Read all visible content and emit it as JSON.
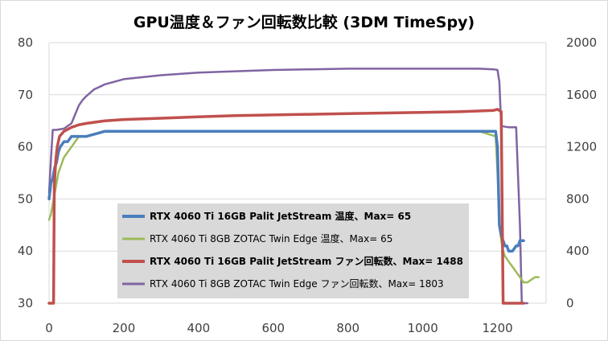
{
  "chart_data": {
    "type": "line",
    "title": "GPU温度＆ファン回転数比較 (3DM TimeSpy)",
    "xlabel": "",
    "ylabel": "",
    "y2label": "",
    "xlim": [
      0,
      1330
    ],
    "xticks": [
      0,
      200,
      400,
      600,
      800,
      1000,
      1200
    ],
    "ylim": [
      30,
      80
    ],
    "yticks": [
      30,
      40,
      50,
      60,
      70,
      80
    ],
    "y2lim": [
      0,
      2000
    ],
    "y2ticks": [
      0,
      400,
      800,
      1200,
      1600,
      2000
    ],
    "grid": "horizontal",
    "legend_position": "center-left",
    "series": [
      {
        "name": "RTX 4060 Ti 16GB Palit JetStream 温度、Max= 65",
        "axis": "left",
        "color": "#4a7ebb",
        "bold": true,
        "x": [
          0,
          5,
          10,
          15,
          20,
          25,
          30,
          40,
          50,
          60,
          80,
          100,
          150,
          200,
          300,
          400,
          500,
          600,
          700,
          800,
          900,
          1000,
          1100,
          1150,
          1195,
          1200,
          1205,
          1210,
          1215,
          1220,
          1225,
          1230,
          1240,
          1250,
          1255,
          1260,
          1270
        ],
        "y": [
          50,
          53,
          54,
          56,
          57,
          59,
          60,
          61,
          61,
          62,
          62,
          62,
          63,
          63,
          63,
          63,
          63,
          63,
          63,
          63,
          63,
          63,
          63,
          63,
          63,
          60,
          45,
          43,
          42,
          41,
          41,
          40,
          40,
          41,
          41,
          42,
          42
        ]
      },
      {
        "name": "RTX 4060 Ti 8GB ZOTAC Twin Edge 温度、Max= 65",
        "axis": "left",
        "color": "#9bbb59",
        "bold": false,
        "x": [
          0,
          5,
          10,
          15,
          20,
          25,
          30,
          40,
          50,
          60,
          70,
          80,
          100,
          150,
          200,
          300,
          400,
          500,
          600,
          700,
          800,
          900,
          1000,
          1100,
          1150,
          1195,
          1200,
          1205,
          1210,
          1215,
          1220,
          1230,
          1240,
          1250,
          1260,
          1270,
          1280,
          1300,
          1310
        ],
        "y": [
          46,
          47,
          49,
          51,
          53,
          55,
          56,
          58,
          59,
          60,
          61,
          62,
          62,
          63,
          63,
          63,
          63,
          63,
          63,
          63,
          63,
          63,
          63,
          63,
          63,
          62,
          55,
          46,
          42,
          40,
          39,
          38,
          37,
          36,
          35,
          34,
          34,
          35,
          35
        ]
      },
      {
        "name": "RTX 4060 Ti 16GB Palit JetStream ファン回転数、Max= 1488",
        "axis": "right",
        "color": "#c0504d",
        "bold": true,
        "x": [
          0,
          12,
          14,
          18,
          22,
          28,
          40,
          60,
          80,
          100,
          150,
          200,
          300,
          400,
          500,
          600,
          700,
          800,
          900,
          1000,
          1100,
          1150,
          1190,
          1200,
          1210,
          1215,
          1240,
          1270
        ],
        "y": [
          0,
          0,
          900,
          1100,
          1200,
          1280,
          1320,
          1350,
          1370,
          1380,
          1400,
          1410,
          1420,
          1430,
          1440,
          1445,
          1450,
          1455,
          1460,
          1465,
          1470,
          1475,
          1480,
          1488,
          1470,
          0,
          0,
          0
        ]
      },
      {
        "name": "RTX 4060 Ti 8GB ZOTAC Twin Edge ファン回転数、Max= 1803",
        "axis": "right",
        "color": "#8064a2",
        "bold": false,
        "x": [
          0,
          5,
          10,
          20,
          40,
          60,
          70,
          80,
          90,
          100,
          120,
          150,
          200,
          300,
          400,
          500,
          600,
          700,
          800,
          900,
          1000,
          1100,
          1150,
          1190,
          1200,
          1205,
          1210,
          1230,
          1245,
          1250,
          1260,
          1265,
          1280
        ],
        "y": [
          850,
          1100,
          1330,
          1330,
          1340,
          1380,
          1450,
          1520,
          1560,
          1590,
          1640,
          1680,
          1720,
          1750,
          1770,
          1780,
          1790,
          1795,
          1800,
          1800,
          1800,
          1800,
          1800,
          1795,
          1790,
          1700,
          1360,
          1350,
          1350,
          1350,
          600,
          0,
          0
        ]
      }
    ]
  }
}
